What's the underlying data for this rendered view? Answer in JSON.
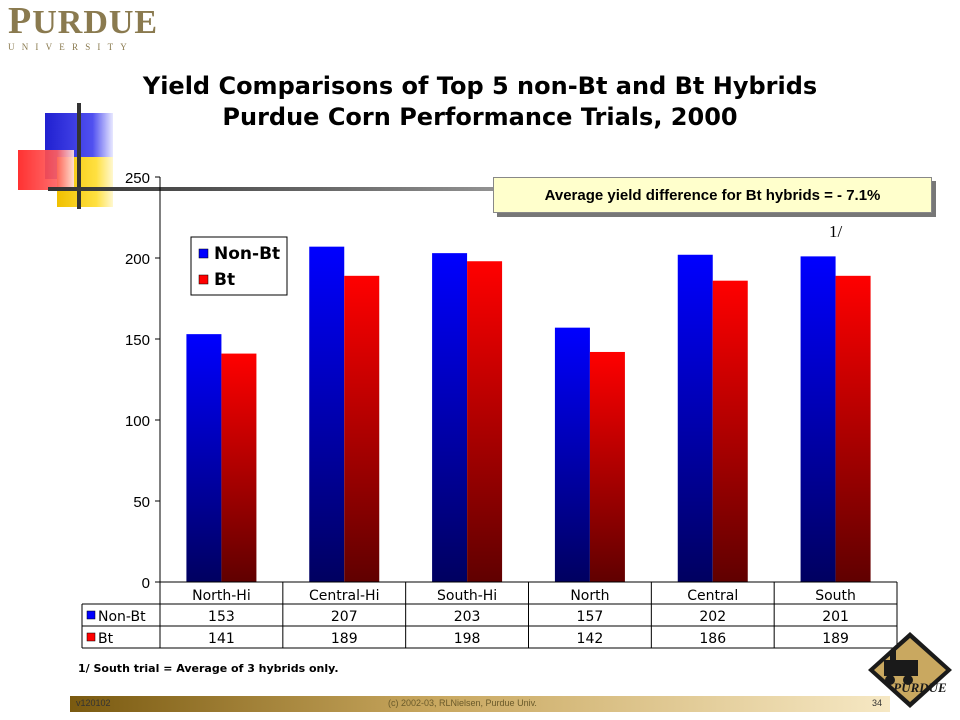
{
  "logo": {
    "word_first": "P",
    "word_rest": "URDUE",
    "subtitle": "UNIVERSITY"
  },
  "title_line1": "Yield Comparisons of Top 5 non-Bt and Bt Hybrids",
  "title_line2": "Purdue Corn Performance Trials, 2000",
  "annotation": "Average yield difference for Bt hybrids = - 7.1%",
  "footnote_marker": "1/",
  "footnote": "1/ South trial = Average of 3 hybrids only.",
  "footer": {
    "version": "v120102",
    "copyright": "(c) 2002-03, RLNielsen, Purdue Univ.",
    "page": "34"
  },
  "badge_text": "PURDUE",
  "colors": {
    "non_bt": "#0000ff",
    "bt": "#ff0000",
    "gold": "#8a7a4f"
  },
  "chart_data": {
    "type": "bar",
    "categories": [
      "North-Hi",
      "Central-Hi",
      "South-Hi",
      "North",
      "Central",
      "South"
    ],
    "series": [
      {
        "name": "Non-Bt",
        "values": [
          153,
          207,
          203,
          157,
          202,
          201
        ]
      },
      {
        "name": "Bt",
        "values": [
          141,
          189,
          198,
          142,
          186,
          189
        ]
      }
    ],
    "ylim": [
      0,
      250
    ],
    "yticks": [
      0,
      50,
      100,
      150,
      200,
      250
    ],
    "legend": "top-left",
    "grid": false,
    "data_table": true
  }
}
